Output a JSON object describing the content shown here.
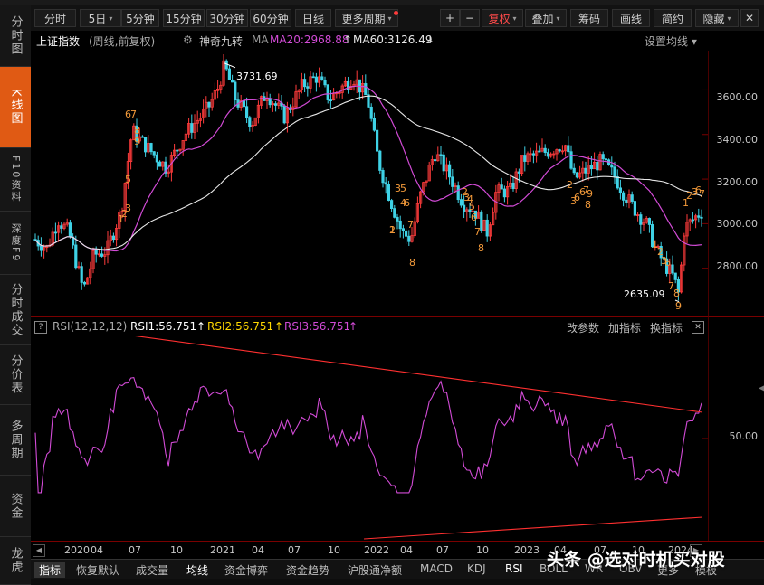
{
  "sidebar": {
    "items": [
      "分时图",
      "K线图",
      "F10资料",
      "深度F9",
      "分时成交",
      "分价表",
      "多周期",
      "资金",
      "龙虎"
    ],
    "active_index": 1
  },
  "toolbar": {
    "items": [
      "分时",
      "5日",
      "5分钟",
      "15分钟",
      "30分钟",
      "60分钟",
      "日线",
      "更多周期"
    ],
    "tools": [
      "+",
      "−",
      "复权",
      "叠加",
      "筹码",
      "画线",
      "简约",
      "隐藏"
    ],
    "close": "✕"
  },
  "info": {
    "title": "上证指数",
    "mode": "(周线,前复权)",
    "indicator": "神奇九转",
    "ma_label": "MA",
    "ma20": "MA20:2968.88",
    "ma60": "MA60:3126.49",
    "settings": "设置均线"
  },
  "kline_axis": [
    "3600.00",
    "3400.00",
    "3200.00",
    "3000.00",
    "2800.00"
  ],
  "annotations": {
    "high": "3731.69",
    "low": "2635.09"
  },
  "rsi": {
    "params": "RSI(12,12,12)",
    "rsi1": "RSI1:56.751",
    "rsi2": "RSI2:56.751",
    "rsi3": "RSI3:56.751",
    "links": [
      "改参数",
      "加指标",
      "换指标"
    ],
    "axis": [
      "50.00"
    ]
  },
  "dates": [
    "2020",
    "04",
    "07",
    "10",
    "2021",
    "04",
    "07",
    "10",
    "2022",
    "04",
    "07",
    "10",
    "2023",
    "04",
    "07",
    "10",
    "2024"
  ],
  "bottom_tabs": [
    "指标",
    "恢复默认",
    "成交量",
    "均线",
    "资金博弈",
    "资金趋势",
    "沪股通净额",
    "MACD",
    "KDJ",
    "RSI",
    "BOLL",
    "WR",
    "OBV",
    "更多",
    "模板"
  ],
  "watermark": "头条 @选对时机买对股",
  "colors": {
    "up": "#ff3b3b",
    "down": "#3fd2e6",
    "ma20": "#d24bd6",
    "ma60": "#e8e8e8",
    "rsi": "#d24bd6",
    "trend": "#ff3030",
    "nine": "#f39a3a",
    "accent": "#e05a14"
  },
  "chart_data": {
    "type": "candlestick",
    "price_range": [
      2600,
      3760
    ],
    "rsi_levels_shown": [
      50
    ],
    "extremes": {
      "high": 3731.69,
      "low": 2635.09
    }
  }
}
